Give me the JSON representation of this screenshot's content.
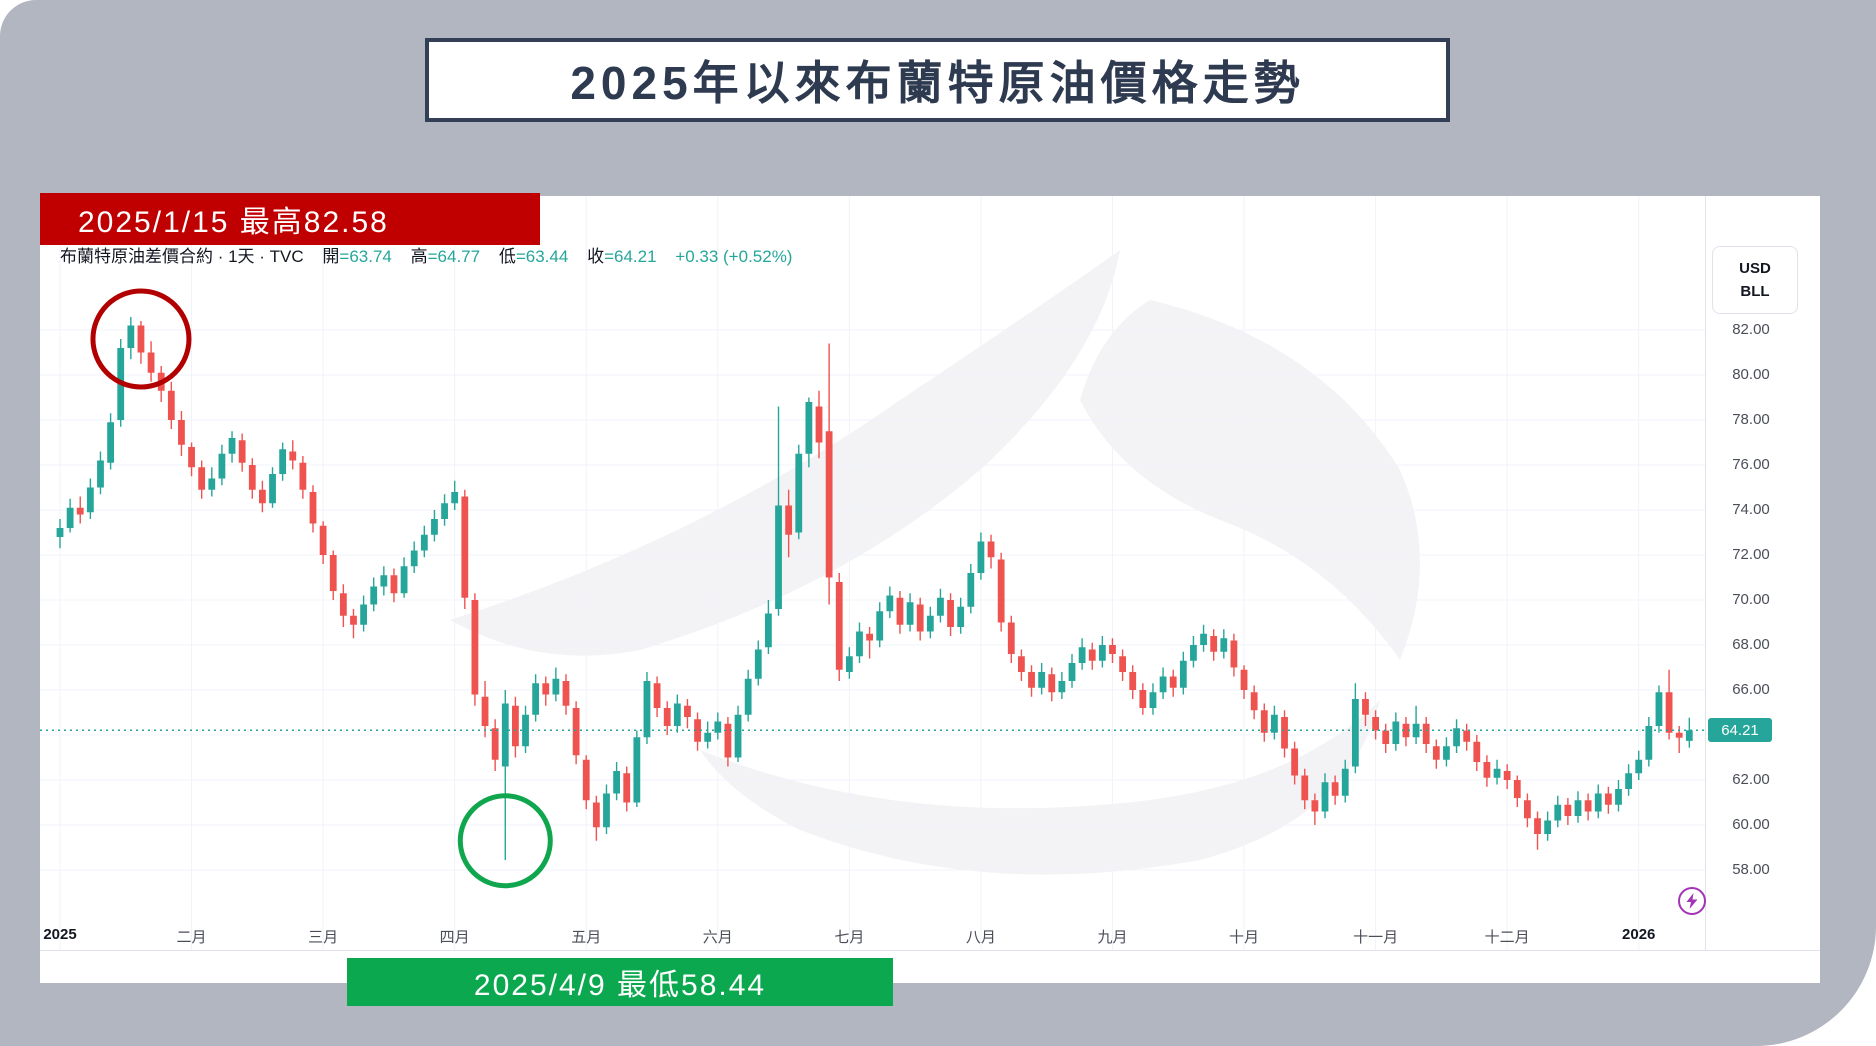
{
  "title": "2025年以來布蘭特原油價格走勢",
  "annotations": {
    "high_label": "2025/1/15 最高82.58",
    "low_label": "2025/4/9 最低58.44"
  },
  "chart_header": {
    "symbol_line": "布蘭特原油差價合約 · 1天 · TVC",
    "open_label": "開",
    "open_value": "=63.74",
    "high_label": "高",
    "high_value": "=64.77",
    "low_label": "低",
    "low_value": "=63.44",
    "close_label": "收",
    "close_value": "=64.21",
    "change": "+0.33 (+0.52%)"
  },
  "axes": {
    "unit_top": "USD",
    "unit_bottom": "BLL",
    "price_ticks": [
      "82.00",
      "80.00",
      "78.00",
      "76.00",
      "74.00",
      "72.00",
      "70.00",
      "68.00",
      "66.00",
      "62.00",
      "60.00",
      "58.00"
    ],
    "grid_prices": [
      82,
      80,
      78,
      76,
      74,
      72,
      70,
      68,
      66,
      64,
      62,
      60,
      58
    ],
    "time_ticks": [
      "2025",
      "二月",
      "三月",
      "四月",
      "五月",
      "六月",
      "七月",
      "八月",
      "九月",
      "十月",
      "十一月",
      "十二月",
      "2026"
    ],
    "last_price_label": "64.21"
  },
  "chart_data": {
    "type": "candlestick",
    "title": "2025年以來布蘭特原油價格走勢",
    "symbol": "布蘭特原油差價合約 (Brent Crude CFD)",
    "interval": "1天",
    "exchange": "TVC",
    "ylabel": "USD/BLL",
    "ylim": [
      56,
      84
    ],
    "grid": true,
    "bars_per_month": 13,
    "months": [
      "2025-01",
      "2025-02",
      "2025-03",
      "2025-04",
      "2025-05",
      "2025-06",
      "2025-07",
      "2025-08",
      "2025-09",
      "2025-10",
      "2025-11",
      "2025-12",
      "2026-01"
    ],
    "last_price": 64.21,
    "last_bar": {
      "open": 63.74,
      "high": 64.77,
      "low": 63.44,
      "close": 64.21,
      "change": 0.33,
      "change_pct": 0.52
    },
    "high_point": {
      "date": "2025/1/15",
      "price": 82.58
    },
    "low_point": {
      "date": "2025/4/9",
      "price": 58.44
    },
    "colors": {
      "up": "#26a69a",
      "down": "#ef5350",
      "grid": "#f0f3fa",
      "dotted_line": "#26a69a"
    },
    "circle_marks": [
      {
        "shape": "circle",
        "bar": 8,
        "price": 81.6,
        "radius": 48,
        "color": "#b20000"
      },
      {
        "shape": "circle",
        "bar": 44,
        "price": 59.3,
        "radius": 45,
        "color": "#0fa64e"
      }
    ],
    "ohlc": [
      [
        72.8,
        73.6,
        72.3,
        73.2
      ],
      [
        73.2,
        74.5,
        73.0,
        74.1
      ],
      [
        74.1,
        74.6,
        73.4,
        73.8
      ],
      [
        73.9,
        75.4,
        73.6,
        75.0
      ],
      [
        75.0,
        76.6,
        74.7,
        76.2
      ],
      [
        76.1,
        78.3,
        75.8,
        77.9
      ],
      [
        78.0,
        81.6,
        77.7,
        81.2
      ],
      [
        81.2,
        82.58,
        80.7,
        82.2
      ],
      [
        82.2,
        82.4,
        80.5,
        81.0
      ],
      [
        81.0,
        81.5,
        79.7,
        80.1
      ],
      [
        80.1,
        80.4,
        78.8,
        79.3
      ],
      [
        79.3,
        79.7,
        77.6,
        78.0
      ],
      [
        78.0,
        78.4,
        76.4,
        76.9
      ],
      [
        76.8,
        77.0,
        75.5,
        75.9
      ],
      [
        75.9,
        76.2,
        74.5,
        74.9
      ],
      [
        74.9,
        75.9,
        74.6,
        75.4
      ],
      [
        75.4,
        76.9,
        75.1,
        76.5
      ],
      [
        76.5,
        77.5,
        76.1,
        77.2
      ],
      [
        77.1,
        77.4,
        75.7,
        76.1
      ],
      [
        76.0,
        76.3,
        74.5,
        74.9
      ],
      [
        74.9,
        75.3,
        73.9,
        74.3
      ],
      [
        74.3,
        75.9,
        74.1,
        75.6
      ],
      [
        75.6,
        77.0,
        75.3,
        76.7
      ],
      [
        76.6,
        77.1,
        75.8,
        76.2
      ],
      [
        76.1,
        76.4,
        74.5,
        74.9
      ],
      [
        74.8,
        75.1,
        73.0,
        73.4
      ],
      [
        73.3,
        73.5,
        71.6,
        72.0
      ],
      [
        72.0,
        72.2,
        70.0,
        70.4
      ],
      [
        70.3,
        70.7,
        68.8,
        69.3
      ],
      [
        69.3,
        69.6,
        68.3,
        68.9
      ],
      [
        68.9,
        70.2,
        68.6,
        69.8
      ],
      [
        69.8,
        71.0,
        69.5,
        70.6
      ],
      [
        70.6,
        71.5,
        70.2,
        71.1
      ],
      [
        71.1,
        71.4,
        69.9,
        70.3
      ],
      [
        70.3,
        71.9,
        70.1,
        71.5
      ],
      [
        71.5,
        72.6,
        71.2,
        72.2
      ],
      [
        72.2,
        73.3,
        71.9,
        72.9
      ],
      [
        72.9,
        74.0,
        72.6,
        73.6
      ],
      [
        73.6,
        74.7,
        73.3,
        74.3
      ],
      [
        74.3,
        75.3,
        74.0,
        74.8
      ],
      [
        74.6,
        74.9,
        69.6,
        70.1
      ],
      [
        70.0,
        70.3,
        65.3,
        65.8
      ],
      [
        65.7,
        66.4,
        63.9,
        64.4
      ],
      [
        64.3,
        64.7,
        62.4,
        62.9
      ],
      [
        62.6,
        66.0,
        58.44,
        65.4
      ],
      [
        65.3,
        65.7,
        63.0,
        63.5
      ],
      [
        63.5,
        65.3,
        63.2,
        64.9
      ],
      [
        64.9,
        66.7,
        64.6,
        66.3
      ],
      [
        66.3,
        66.6,
        65.3,
        65.8
      ],
      [
        65.8,
        67.0,
        65.5,
        66.5
      ],
      [
        66.4,
        66.7,
        64.9,
        65.3
      ],
      [
        65.2,
        65.5,
        62.7,
        63.1
      ],
      [
        62.9,
        63.1,
        60.7,
        61.1
      ],
      [
        61.0,
        61.3,
        59.3,
        59.9
      ],
      [
        59.9,
        61.8,
        59.6,
        61.4
      ],
      [
        61.4,
        62.8,
        61.1,
        62.4
      ],
      [
        62.3,
        62.6,
        60.6,
        61.0
      ],
      [
        61.0,
        64.2,
        60.8,
        63.9
      ],
      [
        63.9,
        66.8,
        63.6,
        66.4
      ],
      [
        66.3,
        66.6,
        64.8,
        65.2
      ],
      [
        65.2,
        65.5,
        64.0,
        64.4
      ],
      [
        64.4,
        65.8,
        64.1,
        65.4
      ],
      [
        65.3,
        65.6,
        64.3,
        64.8
      ],
      [
        64.7,
        65.0,
        63.3,
        63.7
      ],
      [
        63.7,
        64.6,
        63.4,
        64.1
      ],
      [
        64.1,
        65.0,
        63.8,
        64.6
      ],
      [
        64.5,
        64.8,
        62.6,
        63.0
      ],
      [
        63.0,
        65.3,
        62.8,
        64.9
      ],
      [
        64.9,
        66.9,
        64.6,
        66.5
      ],
      [
        66.5,
        68.2,
        66.2,
        67.8
      ],
      [
        67.9,
        70.0,
        67.6,
        69.4
      ],
      [
        69.6,
        78.6,
        69.3,
        74.2
      ],
      [
        74.2,
        74.9,
        71.9,
        72.9
      ],
      [
        73.0,
        76.9,
        72.7,
        76.5
      ],
      [
        76.5,
        79.0,
        75.9,
        78.8
      ],
      [
        78.6,
        79.3,
        76.3,
        77.0
      ],
      [
        77.5,
        81.4,
        69.8,
        71.0
      ],
      [
        70.8,
        71.2,
        66.4,
        66.9
      ],
      [
        66.8,
        67.9,
        66.5,
        67.5
      ],
      [
        67.5,
        69.0,
        67.2,
        68.6
      ],
      [
        68.5,
        68.8,
        67.4,
        68.2
      ],
      [
        68.2,
        69.9,
        67.9,
        69.5
      ],
      [
        69.5,
        70.6,
        69.2,
        70.2
      ],
      [
        70.1,
        70.4,
        68.5,
        68.9
      ],
      [
        68.9,
        70.3,
        68.6,
        69.9
      ],
      [
        69.8,
        70.1,
        68.2,
        68.6
      ],
      [
        68.6,
        69.7,
        68.3,
        69.3
      ],
      [
        69.3,
        70.5,
        69.0,
        70.1
      ],
      [
        70.0,
        70.3,
        68.4,
        68.8
      ],
      [
        68.8,
        70.1,
        68.5,
        69.7
      ],
      [
        69.7,
        71.6,
        69.4,
        71.2
      ],
      [
        71.2,
        73.0,
        70.9,
        72.6
      ],
      [
        72.6,
        72.9,
        71.4,
        71.9
      ],
      [
        71.8,
        72.1,
        68.6,
        69.0
      ],
      [
        69.0,
        69.3,
        67.2,
        67.6
      ],
      [
        67.5,
        67.8,
        66.4,
        66.8
      ],
      [
        66.8,
        67.1,
        65.7,
        66.1
      ],
      [
        66.1,
        67.2,
        65.8,
        66.8
      ],
      [
        66.7,
        67.0,
        65.5,
        65.9
      ],
      [
        65.9,
        66.8,
        65.6,
        66.4
      ],
      [
        66.4,
        67.6,
        66.1,
        67.2
      ],
      [
        67.2,
        68.3,
        66.9,
        67.9
      ],
      [
        67.8,
        68.1,
        66.9,
        67.3
      ],
      [
        67.3,
        68.4,
        67.0,
        68.0
      ],
      [
        68.0,
        68.3,
        67.2,
        67.6
      ],
      [
        67.5,
        67.8,
        66.4,
        66.8
      ],
      [
        66.8,
        67.1,
        65.6,
        66.0
      ],
      [
        66.0,
        66.3,
        64.9,
        65.2
      ],
      [
        65.2,
        66.3,
        64.9,
        65.9
      ],
      [
        65.9,
        67.0,
        65.6,
        66.6
      ],
      [
        66.6,
        66.9,
        65.7,
        66.1
      ],
      [
        66.1,
        67.7,
        65.8,
        67.3
      ],
      [
        67.3,
        68.4,
        67.0,
        68.0
      ],
      [
        68.0,
        68.9,
        67.7,
        68.5
      ],
      [
        68.4,
        68.7,
        67.3,
        67.7
      ],
      [
        67.7,
        68.7,
        67.4,
        68.3
      ],
      [
        68.2,
        68.5,
        66.6,
        67.0
      ],
      [
        66.9,
        67.1,
        65.6,
        66.0
      ],
      [
        65.9,
        66.2,
        64.7,
        65.1
      ],
      [
        65.1,
        65.4,
        63.7,
        64.1
      ],
      [
        64.1,
        65.3,
        63.8,
        64.9
      ],
      [
        64.8,
        65.1,
        63.0,
        63.4
      ],
      [
        63.4,
        63.7,
        61.8,
        62.2
      ],
      [
        62.2,
        62.5,
        60.7,
        61.1
      ],
      [
        61.1,
        61.4,
        60.0,
        60.6
      ],
      [
        60.6,
        62.3,
        60.3,
        61.9
      ],
      [
        61.9,
        62.2,
        60.9,
        61.3
      ],
      [
        61.3,
        62.9,
        61.0,
        62.5
      ],
      [
        62.6,
        66.3,
        62.3,
        65.6
      ],
      [
        65.6,
        65.9,
        64.4,
        64.9
      ],
      [
        64.8,
        65.1,
        63.8,
        64.2
      ],
      [
        64.2,
        64.5,
        63.2,
        63.6
      ],
      [
        63.6,
        65.0,
        63.3,
        64.6
      ],
      [
        64.5,
        64.8,
        63.5,
        63.9
      ],
      [
        63.9,
        65.3,
        63.6,
        64.5
      ],
      [
        64.5,
        64.8,
        63.2,
        63.6
      ],
      [
        63.5,
        63.8,
        62.5,
        62.9
      ],
      [
        62.9,
        63.9,
        62.6,
        63.5
      ],
      [
        63.5,
        64.7,
        63.2,
        64.3
      ],
      [
        64.2,
        64.5,
        63.3,
        63.7
      ],
      [
        63.7,
        64.0,
        62.4,
        62.8
      ],
      [
        62.8,
        63.1,
        61.7,
        62.1
      ],
      [
        62.1,
        62.9,
        61.8,
        62.5
      ],
      [
        62.4,
        62.7,
        61.6,
        62.0
      ],
      [
        62.0,
        62.2,
        60.8,
        61.2
      ],
      [
        61.1,
        61.4,
        59.9,
        60.3
      ],
      [
        60.3,
        60.6,
        58.9,
        59.6
      ],
      [
        59.6,
        60.6,
        59.3,
        60.2
      ],
      [
        60.2,
        61.3,
        59.9,
        60.9
      ],
      [
        60.9,
        61.2,
        60.0,
        60.4
      ],
      [
        60.4,
        61.5,
        60.1,
        61.1
      ],
      [
        61.1,
        61.4,
        60.2,
        60.6
      ],
      [
        60.6,
        61.8,
        60.3,
        61.4
      ],
      [
        61.4,
        61.7,
        60.5,
        60.9
      ],
      [
        60.9,
        62.0,
        60.6,
        61.6
      ],
      [
        61.6,
        62.7,
        61.3,
        62.3
      ],
      [
        62.3,
        63.3,
        62.0,
        62.9
      ],
      [
        62.9,
        64.8,
        62.6,
        64.4
      ],
      [
        64.4,
        66.2,
        64.1,
        65.9
      ],
      [
        65.9,
        66.9,
        63.8,
        64.1
      ],
      [
        64.1,
        64.4,
        63.2,
        63.88
      ],
      [
        63.74,
        64.77,
        63.44,
        64.21
      ]
    ]
  }
}
